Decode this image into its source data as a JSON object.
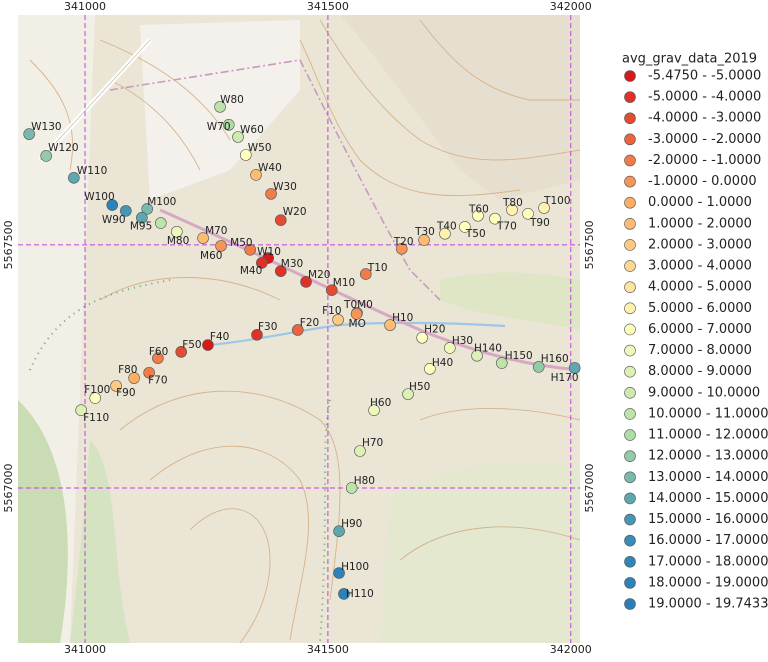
{
  "map": {
    "xlim": [
      340862,
      342019
    ],
    "ylim": [
      5566681,
      5567973
    ],
    "xticks": [
      341000,
      341500,
      342000
    ],
    "yticks": [
      5567500,
      5567000
    ],
    "grid_color": "#c040e0"
  },
  "legend": {
    "title": "avg_grav_data_2019",
    "items": [
      {
        "label": "-5.4750 - -5.0000",
        "color": "#d7191c"
      },
      {
        "label": "-5.0000 - -4.0000",
        "color": "#dd3228"
      },
      {
        "label": "-4.0000 - -3.0000",
        "color": "#e44b33"
      },
      {
        "label": "-3.0000 - -2.0000",
        "color": "#ea643f"
      },
      {
        "label": "-2.0000 - -1.0000",
        "color": "#f07c4a"
      },
      {
        "label": "-1.0000 - 0.0000",
        "color": "#f79556"
      },
      {
        "label": "0.0000 - 1.0000",
        "color": "#fdae61"
      },
      {
        "label": "1.0000 - 2.0000",
        "color": "#fdbc71"
      },
      {
        "label": "2.0000 - 3.0000",
        "color": "#fec981"
      },
      {
        "label": "3.0000 - 4.0000",
        "color": "#fed790"
      },
      {
        "label": "4.0000 - 5.0000",
        "color": "#fee4a0"
      },
      {
        "label": "5.0000 - 6.0000",
        "color": "#fff2af"
      },
      {
        "label": "6.0000 - 7.0000",
        "color": "#ffffbf"
      },
      {
        "label": "7.0000 - 8.0000",
        "color": "#eef8ba"
      },
      {
        "label": "8.0000 - 9.0000",
        "color": "#ddf1b4"
      },
      {
        "label": "9.0000 - 10.0000",
        "color": "#cdeaaf"
      },
      {
        "label": "10.0000 - 11.0000",
        "color": "#bce4a9"
      },
      {
        "label": "11.0000 - 12.0000",
        "color": "#abdda4"
      },
      {
        "label": "12.0000 - 13.0000",
        "color": "#91cba8"
      },
      {
        "label": "13.0000 - 14.0000",
        "color": "#78b9ad"
      },
      {
        "label": "14.0000 - 15.0000",
        "color": "#5ea7b1"
      },
      {
        "label": "15.0000 - 16.0000",
        "color": "#4595b6"
      },
      {
        "label": "16.0000 - 17.0000",
        "color": "#3a8cb8"
      },
      {
        "label": "17.0000 - 18.0000",
        "color": "#2f87b9"
      },
      {
        "label": "18.0000 - 19.0000",
        "color": "#2b83ba"
      },
      {
        "label": "19.0000 - 19.7433",
        "color": "#2a7fba"
      }
    ]
  },
  "points": [
    {
      "label": "W130",
      "x": 340885,
      "y": 5567728,
      "color": "#78b9ad"
    },
    {
      "label": "W120",
      "x": 340920,
      "y": 5567683,
      "color": "#91cba8"
    },
    {
      "label": "W110",
      "x": 340977,
      "y": 5567638,
      "color": "#5ea7b1"
    },
    {
      "label": "W100",
      "x": 341056,
      "y": 5567582,
      "color": "#2b83ba"
    },
    {
      "label": "W90",
      "x": 341084,
      "y": 5567570,
      "color": "#4595b6"
    },
    {
      "label": "M100",
      "x": 341128,
      "y": 5567574,
      "color": "#78b9ad"
    },
    {
      "label": "M95",
      "x": 341117,
      "y": 5567556,
      "color": "#5ea7b1"
    },
    {
      "label": null,
      "x": 341156,
      "y": 5567545,
      "color": "#bce4a9"
    },
    {
      "label": "M80",
      "x": 341189,
      "y": 5567527,
      "color": "#eef8ba"
    },
    {
      "label": "M70",
      "x": 341243,
      "y": 5567514,
      "color": "#fdbc71"
    },
    {
      "label": "M60",
      "x": 341280,
      "y": 5567498,
      "color": "#f79556"
    },
    {
      "label": "M50",
      "x": 341340,
      "y": 5567490,
      "color": "#f07c4a"
    },
    {
      "label": "W10",
      "x": 341377,
      "y": 5567473,
      "color": "#d7191c"
    },
    {
      "label": "M40",
      "x": 341364,
      "y": 5567463,
      "color": "#dd3228"
    },
    {
      "label": "M30",
      "x": 341403,
      "y": 5567446,
      "color": "#dd3228"
    },
    {
      "label": "M20",
      "x": 341455,
      "y": 5567424,
      "color": "#dd3228"
    },
    {
      "label": "M10",
      "x": 341508,
      "y": 5567407,
      "color": "#e44b33"
    },
    {
      "label": "T10",
      "x": 341578,
      "y": 5567440,
      "color": "#f07c4a"
    },
    {
      "label": "W80",
      "x": 341278,
      "y": 5567784,
      "color": "#bce4a9"
    },
    {
      "label": "W70",
      "x": 341296,
      "y": 5567747,
      "color": "#abdda4"
    },
    {
      "label": "W60",
      "x": 341315,
      "y": 5567722,
      "color": "#cdeaaf"
    },
    {
      "label": "W50",
      "x": 341331,
      "y": 5567685,
      "color": "#ffffbf"
    },
    {
      "label": "W40",
      "x": 341352,
      "y": 5567644,
      "color": "#fdbc71"
    },
    {
      "label": "W30",
      "x": 341383,
      "y": 5567605,
      "color": "#f07c4a"
    },
    {
      "label": "W20",
      "x": 341403,
      "y": 5567551,
      "color": "#e44b33"
    },
    {
      "label": "F10",
      "x": 341521,
      "y": 5567346,
      "color": "#fec981"
    },
    {
      "label": "T0M0",
      "x": 341560,
      "y": 5567360,
      "color": "#f79556"
    },
    {
      "label": "MO",
      "x": 341559,
      "y": 5567358,
      "color": "#f79556"
    },
    {
      "label": "T20",
      "x": 341652,
      "y": 5567492,
      "color": "#f79556"
    },
    {
      "label": "T30",
      "x": 341698,
      "y": 5567510,
      "color": "#fdbc71"
    },
    {
      "label": "T40",
      "x": 341741,
      "y": 5567523,
      "color": "#fff2af"
    },
    {
      "label": "T50",
      "x": 341782,
      "y": 5567537,
      "color": "#ffffbf"
    },
    {
      "label": "T60",
      "x": 341809,
      "y": 5567560,
      "color": "#ffffbf"
    },
    {
      "label": "T70",
      "x": 341844,
      "y": 5567554,
      "color": "#ffffbf"
    },
    {
      "label": "T80",
      "x": 341879,
      "y": 5567572,
      "color": "#fff2af"
    },
    {
      "label": "T90",
      "x": 341912,
      "y": 5567564,
      "color": "#ffffbf"
    },
    {
      "label": "T100",
      "x": 341945,
      "y": 5567576,
      "color": "#fff2af"
    },
    {
      "label": "H10",
      "x": 341628,
      "y": 5567335,
      "color": "#fdbc71"
    },
    {
      "label": "H20",
      "x": 341694,
      "y": 5567309,
      "color": "#ffffbf"
    },
    {
      "label": "H30",
      "x": 341751,
      "y": 5567288,
      "color": "#eef8ba"
    },
    {
      "label": "H40",
      "x": 341710,
      "y": 5567245,
      "color": "#ffffbf"
    },
    {
      "label": "H140",
      "x": 341807,
      "y": 5567272,
      "color": "#ddf1b4"
    },
    {
      "label": "H150",
      "x": 341858,
      "y": 5567257,
      "color": "#bce4a9"
    },
    {
      "label": "H160",
      "x": 341934,
      "y": 5567249,
      "color": "#91cba8"
    },
    {
      "label": "H170",
      "x": 342008,
      "y": 5567247,
      "color": "#5ea7b1"
    },
    {
      "label": "H50",
      "x": 341665,
      "y": 5567193,
      "color": "#ddf1b4"
    },
    {
      "label": "H60",
      "x": 341595,
      "y": 5567160,
      "color": "#eef8ba"
    },
    {
      "label": "H70",
      "x": 341566,
      "y": 5567076,
      "color": "#ddf1b4"
    },
    {
      "label": "H80",
      "x": 341549,
      "y": 5567000,
      "color": "#bce4a9"
    },
    {
      "label": "H90",
      "x": 341523,
      "y": 5566911,
      "color": "#5ea7b1"
    },
    {
      "label": "H100",
      "x": 341523,
      "y": 5566825,
      "color": "#2b83ba"
    },
    {
      "label": "H110",
      "x": 341533,
      "y": 5566782,
      "color": "#2b83ba"
    },
    {
      "label": "F20",
      "x": 341438,
      "y": 5567325,
      "color": "#ea643f"
    },
    {
      "label": "F30",
      "x": 341354,
      "y": 5567315,
      "color": "#dd3228"
    },
    {
      "label": "F40",
      "x": 341253,
      "y": 5567294,
      "color": "#d7191c"
    },
    {
      "label": "F50",
      "x": 341198,
      "y": 5567280,
      "color": "#e44b33"
    },
    {
      "label": "F60",
      "x": 341150,
      "y": 5567267,
      "color": "#f07c4a"
    },
    {
      "label": "F70",
      "x": 341132,
      "y": 5567237,
      "color": "#f07c4a"
    },
    {
      "label": "F80",
      "x": 341101,
      "y": 5567226,
      "color": "#fdae61"
    },
    {
      "label": "F90",
      "x": 341064,
      "y": 5567210,
      "color": "#fec981"
    },
    {
      "label": "F100",
      "x": 341021,
      "y": 5567185,
      "color": "#ffffbf"
    },
    {
      "label": "F110",
      "x": 340992,
      "y": 5567160,
      "color": "#ddf1b4"
    }
  ]
}
